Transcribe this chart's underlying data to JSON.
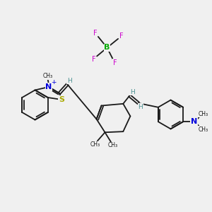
{
  "bg_color": "#f0f0f0",
  "bond_color": "#1a1a1a",
  "bond_lw": 1.3,
  "N_color": "#0000dd",
  "S_color": "#aaaa00",
  "F_color": "#cc00cc",
  "B_color": "#00aa00",
  "H_color": "#4a9090",
  "figsize": [
    3.0,
    3.0
  ],
  "dpi": 100,
  "xlim": [
    0,
    10
  ],
  "ylim": [
    0,
    10
  ]
}
